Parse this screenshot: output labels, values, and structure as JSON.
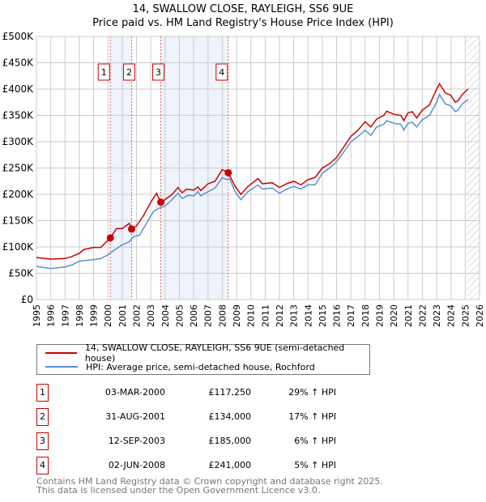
{
  "title": "14, SWALLOW CLOSE, RAYLEIGH, SS6 9UE",
  "subtitle": "Price paid vs. HM Land Registry's House Price Index (HPI)",
  "legend": [
    {
      "label": "14, SWALLOW CLOSE, RAYLEIGH, SS6 9UE (semi-detached house)",
      "color": "#cc0000"
    },
    {
      "label": "HPI: Average price, semi-detached house, Rochford",
      "color": "#5b8fd0"
    }
  ],
  "transactions": [
    {
      "num": "1",
      "date": "03-MAR-2000",
      "price": "£117,250",
      "hpi": "29% ↑ HPI"
    },
    {
      "num": "2",
      "date": "31-AUG-2001",
      "price": "£134,000",
      "hpi": "17% ↑ HPI"
    },
    {
      "num": "3",
      "date": "12-SEP-2003",
      "price": "£185,000",
      "hpi": "6% ↑ HPI"
    },
    {
      "num": "4",
      "date": "02-JUN-2008",
      "price": "£241,000",
      "hpi": "5% ↑ HPI"
    }
  ],
  "footer": [
    "Contains HM Land Registry data © Crown copyright and database right 2025.",
    "This data is licensed under the Open Government Licence v3.0."
  ],
  "chart_data": {
    "type": "line",
    "xlim": [
      1995,
      2026
    ],
    "ylim": [
      0,
      500000
    ],
    "yticks": [
      {
        "v": 0,
        "l": "£0"
      },
      {
        "v": 50000,
        "l": "£50K"
      },
      {
        "v": 100000,
        "l": "£100K"
      },
      {
        "v": 150000,
        "l": "£150K"
      },
      {
        "v": 200000,
        "l": "£200K"
      },
      {
        "v": 250000,
        "l": "£250K"
      },
      {
        "v": 300000,
        "l": "£300K"
      },
      {
        "v": 350000,
        "l": "£350K"
      },
      {
        "v": 400000,
        "l": "£400K"
      },
      {
        "v": 450000,
        "l": "£450K"
      },
      {
        "v": 500000,
        "l": "£500K"
      }
    ],
    "xticks": [
      "1995",
      "1996",
      "1997",
      "1998",
      "1999",
      "2000",
      "2001",
      "2002",
      "2003",
      "2004",
      "2005",
      "2006",
      "2007",
      "2008",
      "2009",
      "2010",
      "2011",
      "2012",
      "2013",
      "2014",
      "2015",
      "2016",
      "2017",
      "2018",
      "2019",
      "2020",
      "2021",
      "2022",
      "2023",
      "2024",
      "2025",
      "2026"
    ],
    "shaded": [
      [
        2000.17,
        2001.66
      ],
      [
        2003.7,
        2008.42
      ]
    ],
    "hatched_from": 2025.1,
    "sales": [
      {
        "label": "1",
        "x": 2000.17,
        "y": 117250
      },
      {
        "label": "2",
        "x": 2001.66,
        "y": 134000
      },
      {
        "label": "3",
        "x": 2003.7,
        "y": 185000
      },
      {
        "label": "4",
        "x": 2008.42,
        "y": 241000
      }
    ],
    "series": [
      {
        "name": "14, SWALLOW CLOSE, RAYLEIGH, SS6 9UE (semi-detached house)",
        "color": "#cc0000",
        "x": [
          1995,
          1996,
          1997,
          1997.5,
          1998,
          1998.3,
          1999,
          1999.5,
          2000.17,
          2000.6,
          2001,
          2001.5,
          2001.66,
          2002,
          2002.5,
          2003,
          2003.4,
          2003.7,
          2004,
          2004.5,
          2004.9,
          2005.2,
          2005.5,
          2006,
          2006.3,
          2006.5,
          2007,
          2007.5,
          2008,
          2008.42,
          2008.9,
          2009.3,
          2009.8,
          2010.5,
          2010.8,
          2011.5,
          2012,
          2012.5,
          2013,
          2013.5,
          2014,
          2014.5,
          2015,
          2015.5,
          2016,
          2016.5,
          2017,
          2017.5,
          2018,
          2018.4,
          2018.8,
          2019.3,
          2019.5,
          2020,
          2020.5,
          2020.7,
          2021,
          2021.3,
          2021.6,
          2022,
          2022.5,
          2023,
          2023.2,
          2023.6,
          2024,
          2024.3,
          2024.5,
          2024.8,
          2025.2
        ],
        "y": [
          80000,
          77000,
          78000,
          82000,
          88000,
          95000,
          99000,
          99000,
          117250,
          135000,
          135000,
          145000,
          134000,
          140000,
          160000,
          185000,
          202000,
          185000,
          190000,
          200000,
          213000,
          203000,
          210000,
          208000,
          214000,
          207000,
          220000,
          225000,
          247000,
          241000,
          215000,
          200000,
          215000,
          230000,
          220000,
          222000,
          213000,
          220000,
          225000,
          218000,
          228000,
          232000,
          250000,
          258000,
          270000,
          290000,
          310000,
          322000,
          338000,
          328000,
          343000,
          350000,
          358000,
          352000,
          350000,
          340000,
          355000,
          357000,
          345000,
          360000,
          370000,
          400000,
          410000,
          393000,
          388000,
          375000,
          378000,
          390000,
          400000
        ]
      },
      {
        "name": "HPI: Average price, semi-detached house, Rochford",
        "color": "#5b8fd0",
        "x": [
          1995,
          1996,
          1997,
          1997.5,
          1998,
          1999,
          1999.5,
          2000,
          2000.5,
          2001,
          2001.5,
          2001.8,
          2002.2,
          2002.7,
          2003.2,
          2003.6,
          2004,
          2004.5,
          2004.9,
          2005.2,
          2005.6,
          2006,
          2006.3,
          2006.5,
          2007,
          2007.5,
          2008,
          2008.3,
          2008.5,
          2008.9,
          2009.3,
          2009.8,
          2010.5,
          2010.8,
          2011.5,
          2012,
          2012.5,
          2013,
          2013.5,
          2014,
          2014.5,
          2015,
          2015.5,
          2016,
          2016.5,
          2017,
          2017.5,
          2018,
          2018.4,
          2018.8,
          2019.3,
          2019.5,
          2020,
          2020.5,
          2020.7,
          2021,
          2021.3,
          2021.6,
          2022,
          2022.5,
          2023,
          2023.2,
          2023.6,
          2024,
          2024.3,
          2024.5,
          2024.8,
          2025.2
        ],
        "y": [
          63000,
          59000,
          62000,
          66000,
          73000,
          76000,
          78000,
          85000,
          95000,
          104000,
          110000,
          120000,
          122000,
          145000,
          168000,
          174000,
          178000,
          190000,
          202000,
          192000,
          198000,
          197000,
          205000,
          197000,
          205000,
          212000,
          232000,
          228000,
          230000,
          205000,
          190000,
          205000,
          218000,
          210000,
          212000,
          202000,
          210000,
          215000,
          210000,
          218000,
          218000,
          240000,
          250000,
          262000,
          280000,
          300000,
          310000,
          322000,
          312000,
          328000,
          333000,
          340000,
          335000,
          333000,
          322000,
          335000,
          337000,
          328000,
          342000,
          350000,
          375000,
          390000,
          372000,
          368000,
          357000,
          360000,
          372000,
          380000
        ]
      }
    ]
  }
}
